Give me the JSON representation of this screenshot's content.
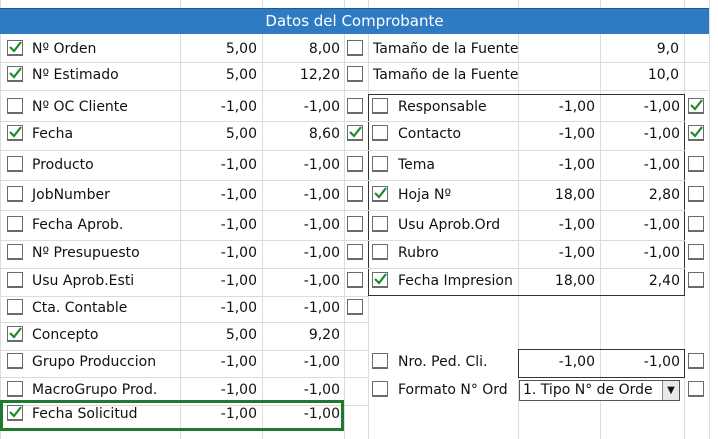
{
  "header": {
    "title": "Datos del Comprobante"
  },
  "left_rows": [
    {
      "label": "Nº Orden",
      "v1": "5,00",
      "v2": "8,00",
      "checked": true
    },
    {
      "label": "Nº Estimado",
      "v1": "5,00",
      "v2": "12,20",
      "checked": true
    },
    {
      "label": "Nº OC Cliente",
      "v1": "-1,00",
      "v2": "-1,00",
      "checked": false
    },
    {
      "label": "Fecha",
      "v1": "5,00",
      "v2": "8,60",
      "checked": true
    },
    {
      "label": "Producto",
      "v1": "-1,00",
      "v2": "-1,00",
      "checked": false
    },
    {
      "label": "JobNumber",
      "v1": "-1,00",
      "v2": "-1,00",
      "checked": false
    },
    {
      "label": "Fecha Aprob.",
      "v1": "-1,00",
      "v2": "-1,00",
      "checked": false
    },
    {
      "label": "Nº Presupuesto",
      "v1": "-1,00",
      "v2": "-1,00",
      "checked": false
    },
    {
      "label": "Usu Aprob.Esti",
      "v1": "-1,00",
      "v2": "-1,00",
      "checked": false
    },
    {
      "label": "Cta. Contable",
      "v1": "-1,00",
      "v2": "-1,00",
      "checked": false
    },
    {
      "label": "Concepto",
      "v1": "5,00",
      "v2": "9,20",
      "checked": true
    },
    {
      "label": "Grupo Produccion",
      "v1": "-1,00",
      "v2": "-1,00",
      "checked": false
    },
    {
      "label": "MacroGrupo Prod.",
      "v1": "-1,00",
      "v2": "-1,00",
      "checked": false
    },
    {
      "label": "Fecha Solicitud",
      "v1": "-1,00",
      "v2": "-1,00",
      "checked": true
    }
  ],
  "mid_checks": [
    false,
    false,
    false,
    true,
    false,
    false,
    false,
    false,
    false,
    false
  ],
  "font_rows": [
    {
      "label": "Tamaño de la Fuente",
      "value": "9,0"
    },
    {
      "label": "Tamaño de la Fuente",
      "value": "10,0"
    }
  ],
  "right_rows": [
    {
      "label": "Responsable",
      "v1": "-1,00",
      "v2": "-1,00",
      "checked": false,
      "end_checked": true
    },
    {
      "label": "Contacto",
      "v1": "-1,00",
      "v2": "-1,00",
      "checked": false,
      "end_checked": true
    },
    {
      "label": "Tema",
      "v1": "-1,00",
      "v2": "-1,00",
      "checked": false,
      "end_checked": false
    },
    {
      "label": "Hoja Nº",
      "v1": "18,00",
      "v2": "2,80",
      "checked": true,
      "end_checked": false
    },
    {
      "label": "Usu Aprob.Ord",
      "v1": "-1,00",
      "v2": "-1,00",
      "checked": false,
      "end_checked": false
    },
    {
      "label": "Rubro",
      "v1": "-1,00",
      "v2": "-1,00",
      "checked": false,
      "end_checked": false
    },
    {
      "label": "Fecha Impresion",
      "v1": "18,00",
      "v2": "2,40",
      "checked": true,
      "end_checked": false
    }
  ],
  "bottom_right": [
    {
      "label": "Nro. Ped. Cli.",
      "v1": "-1,00",
      "v2": "-1,00",
      "checked": false,
      "end_checked": false
    }
  ],
  "formato": {
    "label": "Formato N° Ord",
    "selected": "1. Tipo N° de Orde",
    "checked": false,
    "end_checked": false
  },
  "colors": {
    "header_bg": "#2e7bc4",
    "check": "#1f8a2c",
    "highlight": "#1f7a2f"
  },
  "icons": {
    "dropdown": "chevron-down-icon",
    "check": "checkmark-icon"
  }
}
